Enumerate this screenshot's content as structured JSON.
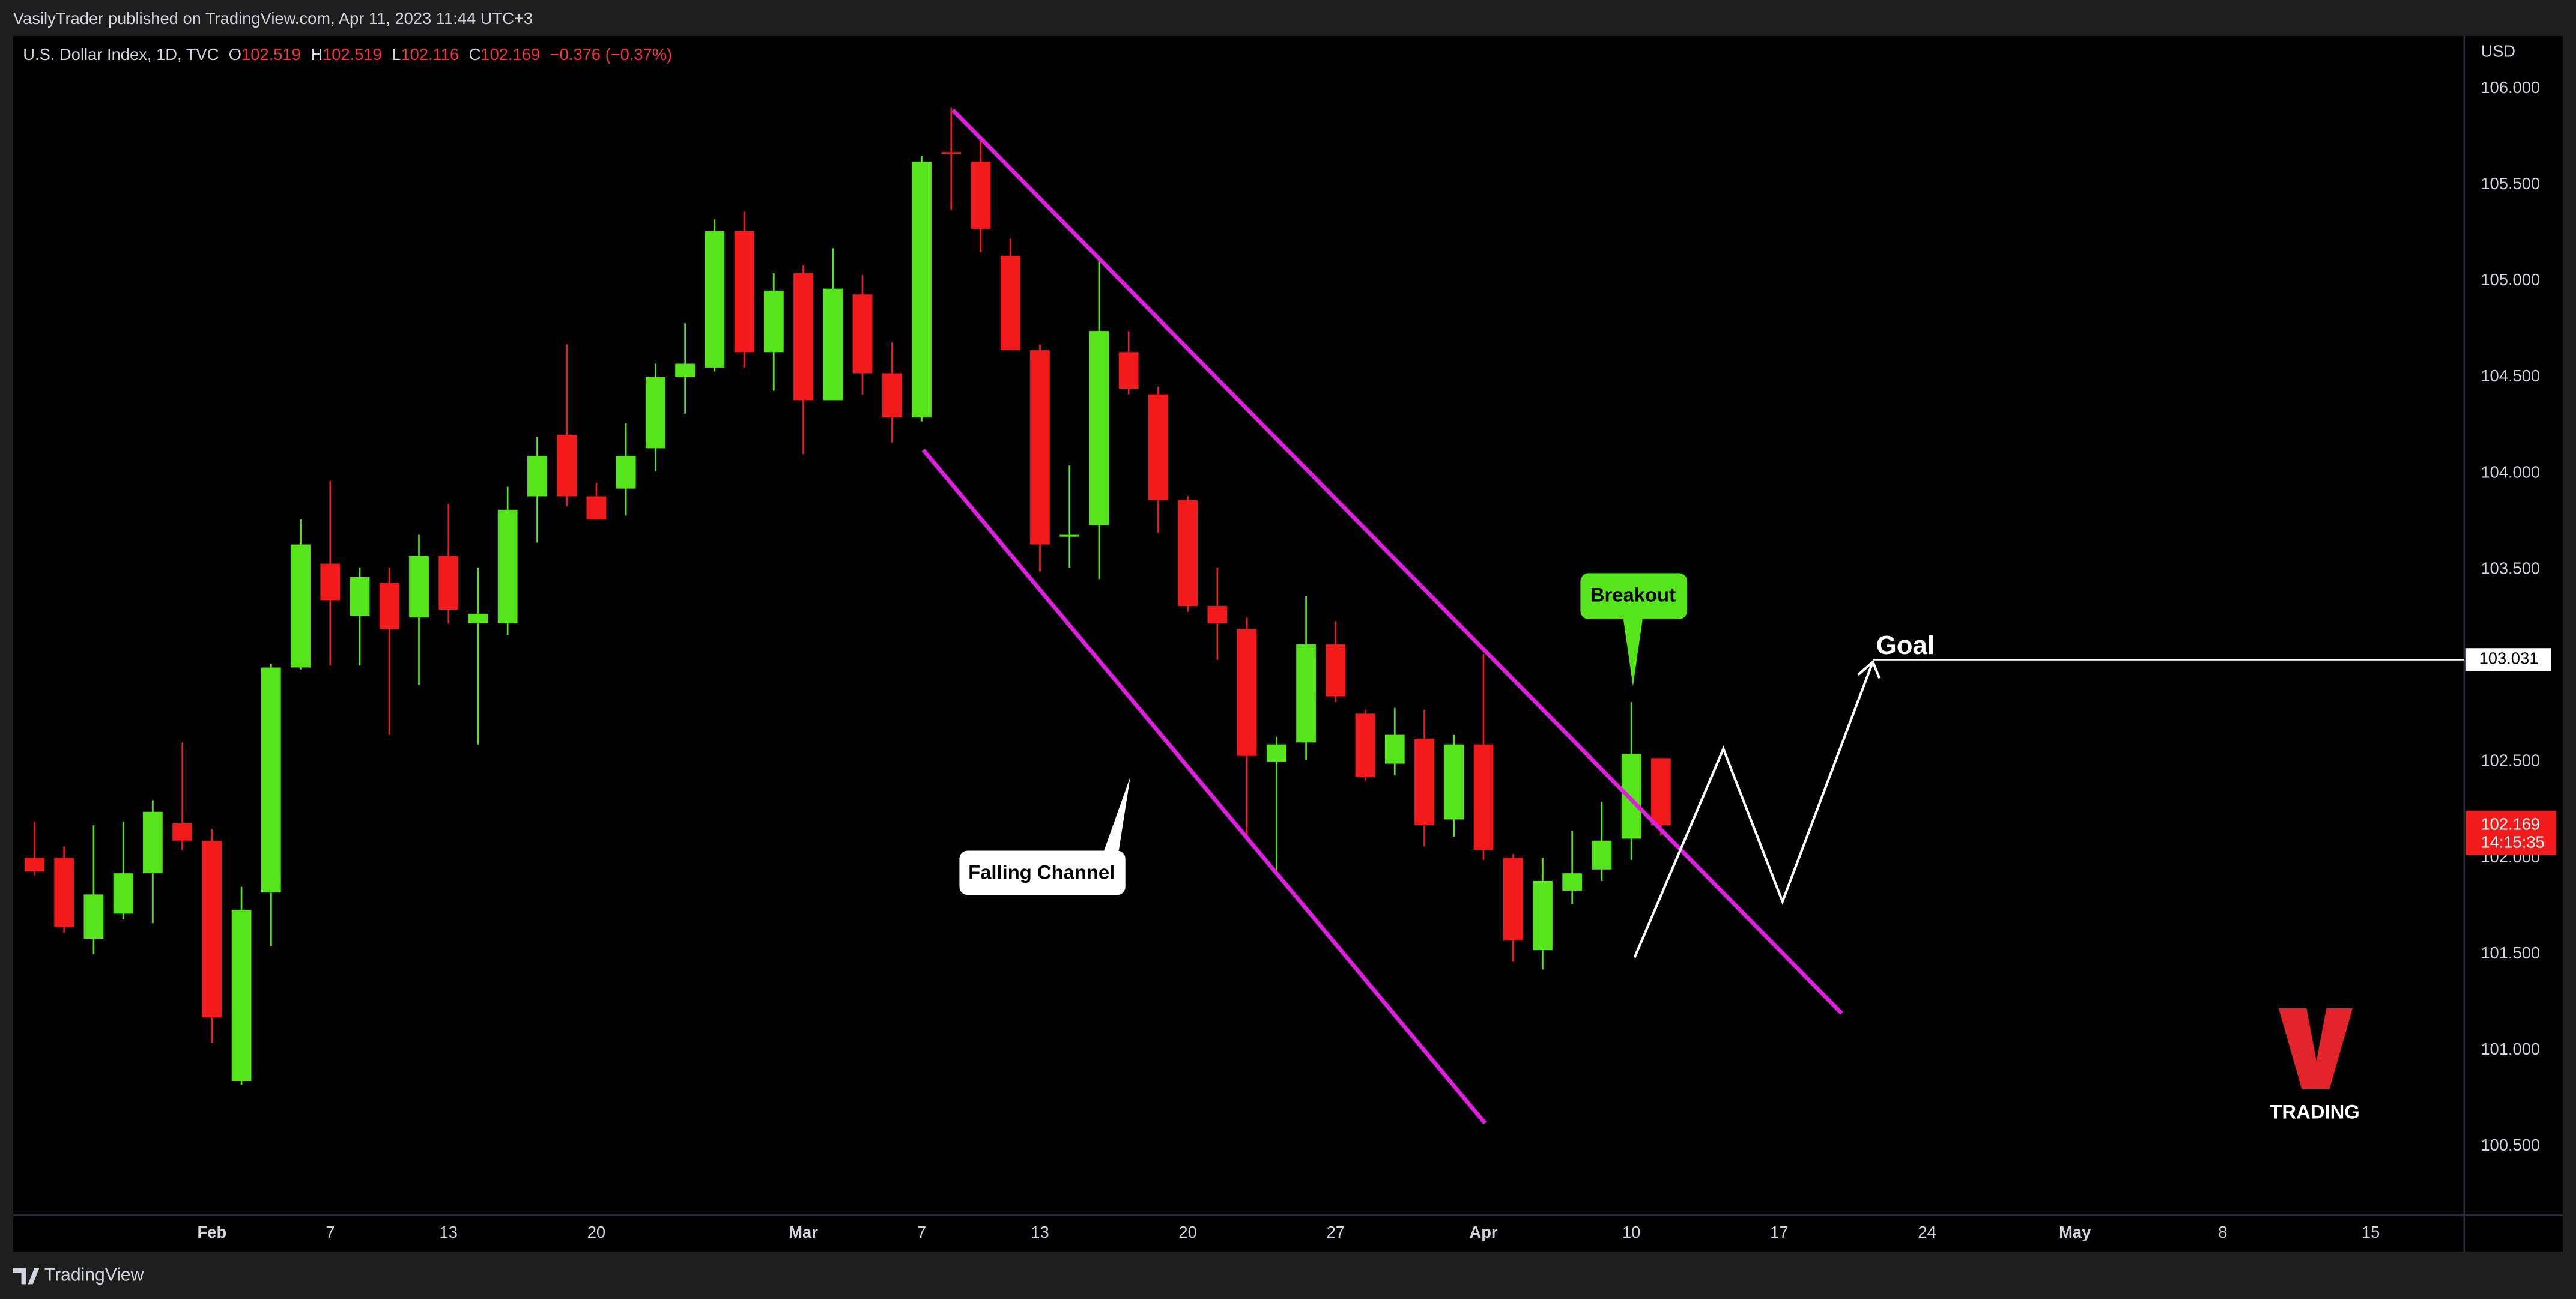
{
  "header": {
    "publisher": "VasilyTrader published on TradingView.com, Apr 11, 2023 11:44 UTC+3",
    "footer_logo": "TradingView"
  },
  "chart_data": {
    "type": "candlestick",
    "title": "U.S. Dollar Index, 1D, TVC",
    "ohlc_labels": [
      "O",
      "H",
      "L",
      "C"
    ],
    "change_label": "−0.376 (−0.37%)",
    "currency": "USD",
    "categories": [
      null,
      null,
      null,
      null,
      null,
      null,
      "Feb",
      null,
      null,
      null,
      "7",
      null,
      null,
      null,
      "13",
      null,
      null,
      null,
      null,
      "20",
      null,
      null,
      null,
      null,
      null,
      null,
      "Mar",
      null,
      null,
      null,
      "7",
      null,
      null,
      null,
      "13",
      null,
      null,
      null,
      null,
      "20",
      null,
      null,
      null,
      null,
      "27",
      null,
      null,
      null,
      null,
      "Apr",
      null,
      null,
      null,
      null,
      "10",
      null,
      null,
      null,
      null,
      "17",
      null,
      null,
      null,
      null,
      "24",
      null,
      null,
      null,
      null,
      "May",
      null,
      null,
      null,
      null,
      "8",
      null,
      null,
      null,
      null,
      "15"
    ],
    "open": [
      102.0,
      102.0,
      101.58,
      101.71,
      101.92,
      102.18,
      102.09,
      100.84,
      101.82,
      102.99,
      103.53,
      103.26,
      103.43,
      103.25,
      103.57,
      103.22,
      103.22,
      103.88,
      104.2,
      103.88,
      103.92,
      104.13,
      104.5,
      104.55,
      105.26,
      104.63,
      105.04,
      104.38,
      104.93,
      104.52,
      104.29,
      105.67,
      105.62,
      105.13,
      104.64,
      103.67,
      103.73,
      104.63,
      104.41,
      103.86,
      103.31,
      103.19,
      102.5,
      102.6,
      103.11,
      102.75,
      102.49,
      102.62,
      102.2,
      102.59,
      102.0,
      101.52,
      101.83,
      101.94,
      102.1,
      102.519,
      null,
      null,
      null,
      null,
      null,
      null,
      null,
      null,
      null,
      null,
      null,
      null,
      null,
      null,
      null,
      null,
      null,
      null,
      null,
      null,
      null,
      null,
      null,
      null
    ],
    "high": [
      102.19,
      102.06,
      102.17,
      102.19,
      102.3,
      102.6,
      102.15,
      101.85,
      103.01,
      103.76,
      103.96,
      103.51,
      103.51,
      103.68,
      103.84,
      103.51,
      103.93,
      104.19,
      104.67,
      103.95,
      104.26,
      104.57,
      104.78,
      105.32,
      105.36,
      105.04,
      105.08,
      105.17,
      105.03,
      104.68,
      105.65,
      105.9,
      105.74,
      105.22,
      104.67,
      104.04,
      105.11,
      104.74,
      104.45,
      103.88,
      103.51,
      103.25,
      102.63,
      103.36,
      103.23,
      102.77,
      102.78,
      102.77,
      102.64,
      103.06,
      102.02,
      102.0,
      102.14,
      102.29,
      102.81,
      102.519,
      null,
      null,
      null,
      null,
      null,
      null,
      null,
      null,
      null,
      null,
      null,
      null,
      null,
      null,
      null,
      null,
      null,
      null,
      null,
      null,
      null,
      null,
      null,
      null
    ],
    "low": [
      101.91,
      101.61,
      101.5,
      101.68,
      101.66,
      102.04,
      101.04,
      100.82,
      101.54,
      102.98,
      103.0,
      103.0,
      102.64,
      102.9,
      103.22,
      102.59,
      103.16,
      103.64,
      103.83,
      103.76,
      103.78,
      104.01,
      104.31,
      104.53,
      104.55,
      104.43,
      104.1,
      104.38,
      104.41,
      104.16,
      104.27,
      105.37,
      105.15,
      104.64,
      103.49,
      103.51,
      103.45,
      104.41,
      103.69,
      103.28,
      103.03,
      102.11,
      101.93,
      102.51,
      102.81,
      102.4,
      102.43,
      102.06,
      102.11,
      101.99,
      101.46,
      101.42,
      101.76,
      101.88,
      101.99,
      102.116,
      null,
      null,
      null,
      null,
      null,
      null,
      null,
      null,
      null,
      null,
      null,
      null,
      null,
      null,
      null,
      null,
      null,
      null,
      null,
      null,
      null,
      null,
      null,
      null
    ],
    "close": [
      101.93,
      101.64,
      101.81,
      101.92,
      102.24,
      102.09,
      101.17,
      101.73,
      102.99,
      103.63,
      103.34,
      103.46,
      103.19,
      103.57,
      103.29,
      103.27,
      103.81,
      104.09,
      103.88,
      103.76,
      104.09,
      104.5,
      104.57,
      105.26,
      104.63,
      104.95,
      104.38,
      104.96,
      104.52,
      104.29,
      105.62,
      105.66,
      105.27,
      104.64,
      103.63,
      103.68,
      104.74,
      104.44,
      103.86,
      103.31,
      103.22,
      102.53,
      102.59,
      103.11,
      102.84,
      102.42,
      102.64,
      102.17,
      102.59,
      102.04,
      101.57,
      101.88,
      101.92,
      102.09,
      102.54,
      102.169,
      null,
      null,
      null,
      null,
      null,
      null,
      null,
      null,
      null,
      null,
      null,
      null,
      null,
      null,
      null,
      null,
      null,
      null,
      null,
      null,
      null,
      null,
      null,
      null
    ],
    "up_color": "#56e41a",
    "down_color": "#f21a1a",
    "ylim": [
      100.142,
      106.273
    ],
    "yticks": [
      {
        "value": 106,
        "label": "106.000"
      },
      {
        "value": 105.5,
        "label": "105.500"
      },
      {
        "value": 105,
        "label": "105.000"
      },
      {
        "value": 104.5,
        "label": "104.500"
      },
      {
        "value": 104,
        "label": "104.000"
      },
      {
        "value": 103.5,
        "label": "103.500"
      },
      {
        "value": 103,
        "label": "103.000"
      },
      {
        "value": 102.5,
        "label": "102.500"
      },
      {
        "value": 102,
        "label": "102.000"
      },
      {
        "value": 101.5,
        "label": "101.500"
      },
      {
        "value": 101,
        "label": "101.000"
      },
      {
        "value": 100.5,
        "label": "100.500"
      }
    ],
    "grid": false,
    "last_price_countdown": "14:15:35",
    "annotations": [
      {
        "text": "Falling Channel"
      },
      {
        "text": "Breakout"
      },
      {
        "text": "Goal",
        "value": 103.031
      }
    ],
    "watermark": {
      "logo": "V",
      "text": "TRADING"
    }
  }
}
